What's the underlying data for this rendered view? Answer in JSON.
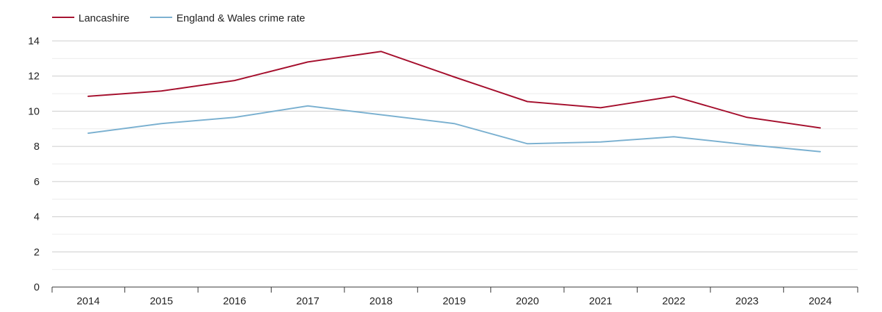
{
  "chart_data": {
    "type": "line",
    "title": "",
    "xlabel": "",
    "ylabel": "",
    "categories": [
      "2014",
      "2015",
      "2016",
      "2017",
      "2018",
      "2019",
      "2020",
      "2021",
      "2022",
      "2023",
      "2024"
    ],
    "ylim": [
      0,
      14
    ],
    "yticks": [
      0,
      2,
      4,
      6,
      8,
      10,
      12,
      14
    ],
    "grid": true,
    "legend_position": "top-left",
    "series": [
      {
        "name": "Lancashire",
        "color": "#a50f2d",
        "values": [
          10.85,
          11.15,
          11.75,
          12.8,
          13.4,
          11.95,
          10.55,
          10.2,
          10.85,
          9.65,
          9.05
        ]
      },
      {
        "name": "England & Wales crime rate",
        "color": "#7ab0d0",
        "values": [
          8.75,
          9.3,
          9.65,
          10.3,
          9.8,
          9.3,
          8.15,
          8.25,
          8.55,
          8.1,
          7.7
        ]
      }
    ]
  }
}
